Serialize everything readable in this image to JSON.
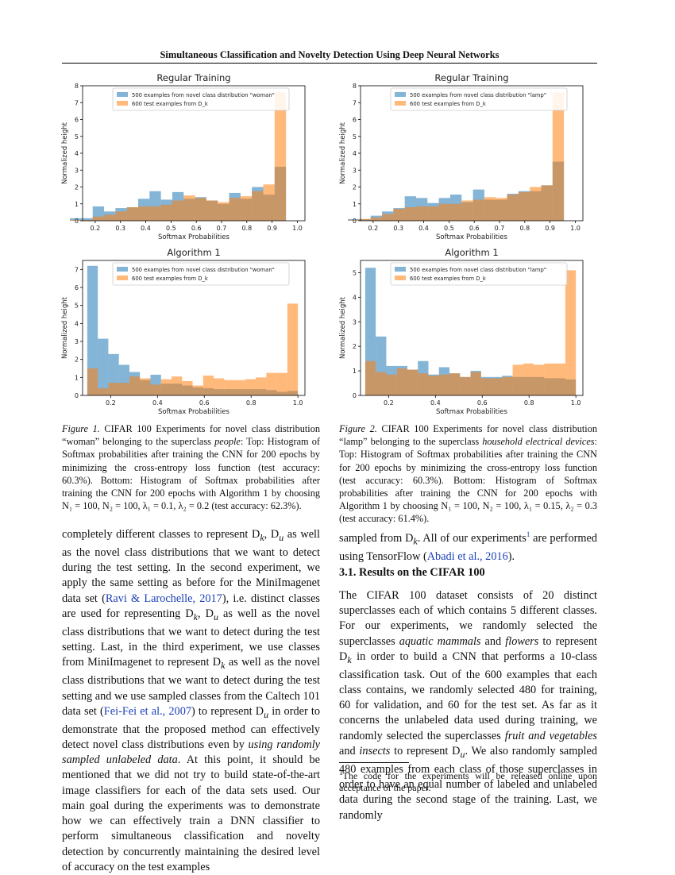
{
  "header": "Simultaneous Classification and Novelty Detection Using Deep Neural Networks",
  "chart_data": [
    {
      "id": "fig1-top",
      "type": "histogram",
      "title": "Regular Training",
      "xlabel": "Softmax Probabilities",
      "ylabel": "Normalized height",
      "xlim": [
        0.15,
        1.03
      ],
      "ylim": [
        0,
        8
      ],
      "xticks": [
        "0.2",
        "0.3",
        "0.4",
        "0.5",
        "0.6",
        "0.7",
        "0.8",
        "0.9",
        "1.0"
      ],
      "yticks": [
        "0",
        "1",
        "2",
        "3",
        "4",
        "5",
        "6",
        "7",
        "8"
      ],
      "legend_position": "top-left",
      "bin_start": 0.1,
      "bin_width": 0.045,
      "series": [
        {
          "name": "500 examples from novel class distribution \"woman\"",
          "color": "#1f77b4",
          "values": [
            0.15,
            0.15,
            0.85,
            0.55,
            0.75,
            0.8,
            1.3,
            1.75,
            1.25,
            1.7,
            1.3,
            1.4,
            1.2,
            1.0,
            1.65,
            1.3,
            2.0,
            1.55,
            3.2
          ]
        },
        {
          "name": "600 test examples from D_k",
          "color": "#ff7f0e",
          "values": [
            0.05,
            0.05,
            0.25,
            0.35,
            0.55,
            0.8,
            0.85,
            0.85,
            0.95,
            1.2,
            1.5,
            1.35,
            1.2,
            1.1,
            1.35,
            1.45,
            1.75,
            2.15,
            7.6
          ]
        }
      ]
    },
    {
      "id": "fig2-top",
      "type": "histogram",
      "title": "Regular Training",
      "xlabel": "Softmax Probabilities",
      "ylabel": "Normalized height",
      "xlim": [
        0.15,
        1.03
      ],
      "ylim": [
        0,
        8
      ],
      "xticks": [
        "0.2",
        "0.3",
        "0.4",
        "0.5",
        "0.6",
        "0.7",
        "0.8",
        "0.9",
        "1.0"
      ],
      "yticks": [
        "0",
        "1",
        "2",
        "3",
        "4",
        "5",
        "6",
        "7",
        "8"
      ],
      "legend_position": "top-left",
      "bin_start": 0.1,
      "bin_width": 0.045,
      "series": [
        {
          "name": "500 examples from novel class distribution \"lamp\"",
          "color": "#1f77b4",
          "values": [
            0.1,
            0.1,
            0.3,
            0.55,
            0.75,
            1.45,
            1.35,
            1.05,
            1.35,
            1.55,
            1.1,
            1.85,
            1.25,
            1.25,
            1.6,
            1.75,
            1.75,
            2.1,
            3.5
          ]
        },
        {
          "name": "600 test examples from D_k",
          "color": "#ff7f0e",
          "values": [
            0.05,
            0.1,
            0.2,
            0.4,
            0.7,
            0.8,
            0.85,
            0.85,
            1.0,
            1.0,
            1.2,
            1.25,
            1.4,
            1.35,
            1.55,
            1.7,
            2.0,
            2.1,
            7.6
          ]
        }
      ]
    },
    {
      "id": "fig1-bottom",
      "type": "histogram",
      "title": "Algorithm 1",
      "xlabel": "Softmax Probabilities",
      "ylabel": "Normalized height",
      "xlim": [
        0.08,
        1.03
      ],
      "ylim": [
        0,
        7.5
      ],
      "xticks": [
        "0.2",
        "0.4",
        "0.6",
        "0.8",
        "1.0"
      ],
      "yticks": [
        "0",
        "1",
        "2",
        "3",
        "4",
        "5",
        "6",
        "7"
      ],
      "legend_position": "top-center",
      "bin_start": 0.1,
      "bin_width": 0.045,
      "series": [
        {
          "name": "500 examples from novel class distribution \"woman\"",
          "color": "#1f77b4",
          "values": [
            7.2,
            3.15,
            2.3,
            1.7,
            1.3,
            0.85,
            1.15,
            0.65,
            0.65,
            0.55,
            0.45,
            0.4,
            0.35,
            0.35,
            0.35,
            0.35,
            0.35,
            0.3,
            0.2,
            0.25
          ]
        },
        {
          "name": "600 test examples from D_k",
          "color": "#ff7f0e",
          "values": [
            1.5,
            0.4,
            0.7,
            0.7,
            1.05,
            0.95,
            0.6,
            0.9,
            1.05,
            0.8,
            0.55,
            1.1,
            0.95,
            0.85,
            0.85,
            0.9,
            1.0,
            1.25,
            1.25,
            5.1
          ]
        }
      ]
    },
    {
      "id": "fig2-bottom",
      "type": "histogram",
      "title": "Algorithm 1",
      "xlabel": "Softmax Probabilities",
      "ylabel": "Normalized height",
      "xlim": [
        0.08,
        1.03
      ],
      "ylim": [
        0,
        5.5
      ],
      "xticks": [
        "0.2",
        "0.4",
        "0.6",
        "0.8",
        "1.0"
      ],
      "yticks": [
        "0",
        "1",
        "2",
        "3",
        "4",
        "5"
      ],
      "legend_position": "top-center",
      "bin_start": 0.1,
      "bin_width": 0.045,
      "series": [
        {
          "name": "500 examples from novel class distribution \"lamp\"",
          "color": "#1f77b4",
          "values": [
            5.2,
            2.4,
            1.2,
            1.2,
            1.05,
            1.4,
            0.85,
            1.15,
            0.9,
            0.75,
            1.0,
            0.75,
            0.75,
            0.8,
            0.75,
            0.75,
            0.75,
            0.7,
            0.7,
            0.65
          ]
        },
        {
          "name": "600 test examples from D_k",
          "color": "#ff7f0e",
          "values": [
            1.4,
            0.95,
            0.85,
            1.1,
            1.05,
            0.9,
            0.8,
            0.85,
            0.9,
            0.75,
            0.95,
            0.7,
            0.7,
            0.75,
            1.25,
            1.3,
            1.25,
            1.3,
            1.3,
            5.1
          ]
        }
      ]
    }
  ],
  "captions": {
    "fig1": {
      "label": "Figure 1.",
      "text_a": " CIFAR 100 Experiments for novel class distribution “woman” belonging to the superclass ",
      "italic": "people",
      "text_b": ": Top: Histogram of Softmax probabilities after training the CNN for 200 epochs by minimizing the cross-entropy loss function (test accuracy: 60.3%). Bottom: Histogram of Softmax probabilities after training the CNN for 200 epochs with Algorithm 1 by choosing N₁ = 100, N₂ = 100, λ₁ = 0.1, λ₂ = 0.2 (test accuracy: 62.3%)."
    },
    "fig2": {
      "label": "Figure 2.",
      "text_a": " CIFAR 100 Experiments for novel class distribution “lamp” belonging to the superclass ",
      "italic": "household electrical devices",
      "text_b": ": Top: Histogram of Softmax probabilities after training the CNN for 200 epochs by minimizing the cross-entropy loss function (test accuracy: 60.3%). Bottom: Histogram of Softmax probabilities after training the CNN for 200 epochs with Algorithm 1 by choosing N₁ = 100, N₂ = 100, λ₁ = 0.15, λ₂ = 0.3 (test accuracy: 61.4%)."
    }
  },
  "left_column": {
    "p1": "completely different classes to represent D",
    "p2": "k",
    "p3": ", D",
    "p4": "u",
    "p5": " as well as the novel class distributions that we want to detect during the test setting. In the second experiment, we apply the same setting as before for the MiniImagenet data set (",
    "cite1": "Ravi & Larochelle, 2017",
    "p6": "), i.e. distinct classes are used for representing D",
    "p7": "k",
    "p8": ", D",
    "p9": "u",
    "p10": " as well as the novel class distributions that we want to detect during the test setting. Last, in the third experiment, we use classes from MiniImagenet to represent D",
    "p11": "k",
    "p12": " as well as the novel class distributions that we want to detect during the test setting and we use sampled classes from the Caltech 101 data set (",
    "cite2": "Fei-Fei et al., 2007",
    "p13": ") to represent D",
    "p14": "u",
    "p15": " in order to demonstrate that the proposed method can effectively detect novel class distributions even by ",
    "p16": "using randomly sampled unlabeled data",
    "p17": ". At this point, it should be mentioned that we did not try to build state-of-the-art image classifiers for each of the data sets used. Our main goal during the experiments was to demonstrate how we can effectively train a DNN classifier to perform simultaneous classification and novelty detection by concurrently maintaining the desired level of accuracy on the test examples"
  },
  "right_column": {
    "r1": "sampled from D",
    "r2": "k",
    "r3": ". All of our experiments",
    "r4": "1",
    "r5": " are performed using TensorFlow (",
    "cite3": "Abadi et al., 2016",
    "r6": ").",
    "section_title": "3.1. Results on the CIFAR 100",
    "s1": "The CIFAR 100 dataset consists of 20 distinct superclasses each of which contains 5 different classes. For our experiments, we randomly selected the superclasses ",
    "s2": "aquatic mammals",
    "s3": " and ",
    "s4": "flowers",
    "s5": " to represent D",
    "s6": "k",
    "s7": " in order to build a CNN that performs a 10-class classification task. Out of the 600 examples that each class contains, we randomly selected 480 for training, 60 for validation, and 60 for the test set. As far as it concerns the unlabeled data used during training, we randomly selected the superclasses ",
    "s8": "fruit and vegetables",
    "s9": " and ",
    "s10": "insects",
    "s11": " to represent D",
    "s12": "u",
    "s13": ". We also randomly sampled 480 examples from each class of those superclasses in order to have an equal number of labeled and unlabeled data during the second stage of the training. Last, we randomly",
    "footnote_mark": "1",
    "footnote": "The code for the experiments will be released online upon acceptance of the paper."
  }
}
